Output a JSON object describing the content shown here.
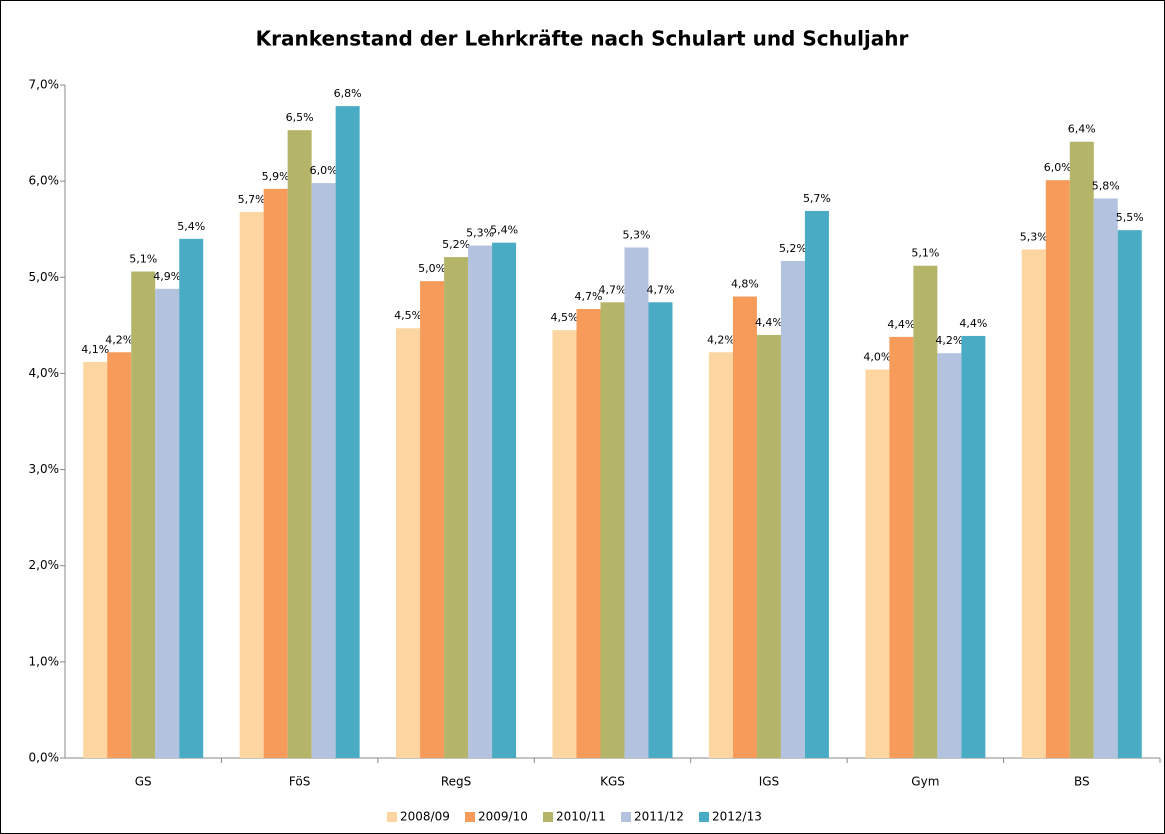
{
  "chart_data": {
    "type": "bar",
    "title": "Krankenstand der Lehrkräfte nach Schulart und Schuljahr",
    "categories": [
      "GS",
      "FöS",
      "RegS",
      "KGS",
      "IGS",
      "Gym",
      "BS"
    ],
    "series": [
      {
        "name": "2008/09",
        "color": "#fcd5a0",
        "values": [
          4.12,
          5.68,
          4.47,
          4.45,
          4.22,
          4.04,
          5.29
        ],
        "value_labels": [
          "4,1%",
          "5,7%",
          "4,5%",
          "4,5%",
          "4,2%",
          "4,0%",
          "5,3%"
        ]
      },
      {
        "name": "2009/10",
        "color": "#f79b5a",
        "values": [
          4.22,
          5.92,
          4.96,
          4.67,
          4.8,
          4.38,
          6.01
        ],
        "value_labels": [
          "4,2%",
          "5,9%",
          "5,0%",
          "4,7%",
          "4,8%",
          "4,4%",
          "6,0%"
        ]
      },
      {
        "name": "2010/11",
        "color": "#b5b56a",
        "values": [
          5.06,
          6.53,
          5.21,
          4.74,
          4.4,
          5.12,
          6.41
        ],
        "value_labels": [
          "5,1%",
          "6,5%",
          "5,2%",
          "4,7%",
          "4,4%",
          "5,1%",
          "6,4%"
        ]
      },
      {
        "name": "2011/12",
        "color": "#b3c2de",
        "values": [
          4.88,
          5.98,
          5.33,
          5.31,
          5.17,
          4.21,
          5.82
        ],
        "value_labels": [
          "4,9%",
          "6,0%",
          "5,3%",
          "5,3%",
          "5,2%",
          "4,2%",
          "5,8%"
        ]
      },
      {
        "name": "2012/13",
        "color": "#4aabc4",
        "values": [
          5.4,
          6.78,
          5.36,
          4.74,
          5.69,
          4.39,
          5.49
        ],
        "value_labels": [
          "5,4%",
          "6,8%",
          "5,4%",
          "4,7%",
          "5,7%",
          "4,4%",
          "5,5%"
        ]
      }
    ],
    "ylim": [
      0,
      7
    ],
    "yticks": [
      {
        "value": 0,
        "label": "0,0%"
      },
      {
        "value": 1,
        "label": "1,0%"
      },
      {
        "value": 2,
        "label": "2,0%"
      },
      {
        "value": 3,
        "label": "3,0%"
      },
      {
        "value": 4,
        "label": "4,0%"
      },
      {
        "value": 5,
        "label": "5,0%"
      },
      {
        "value": 6,
        "label": "6,0%"
      },
      {
        "value": 7,
        "label": "7,0%"
      }
    ],
    "grid": false,
    "legend": "bottom"
  }
}
